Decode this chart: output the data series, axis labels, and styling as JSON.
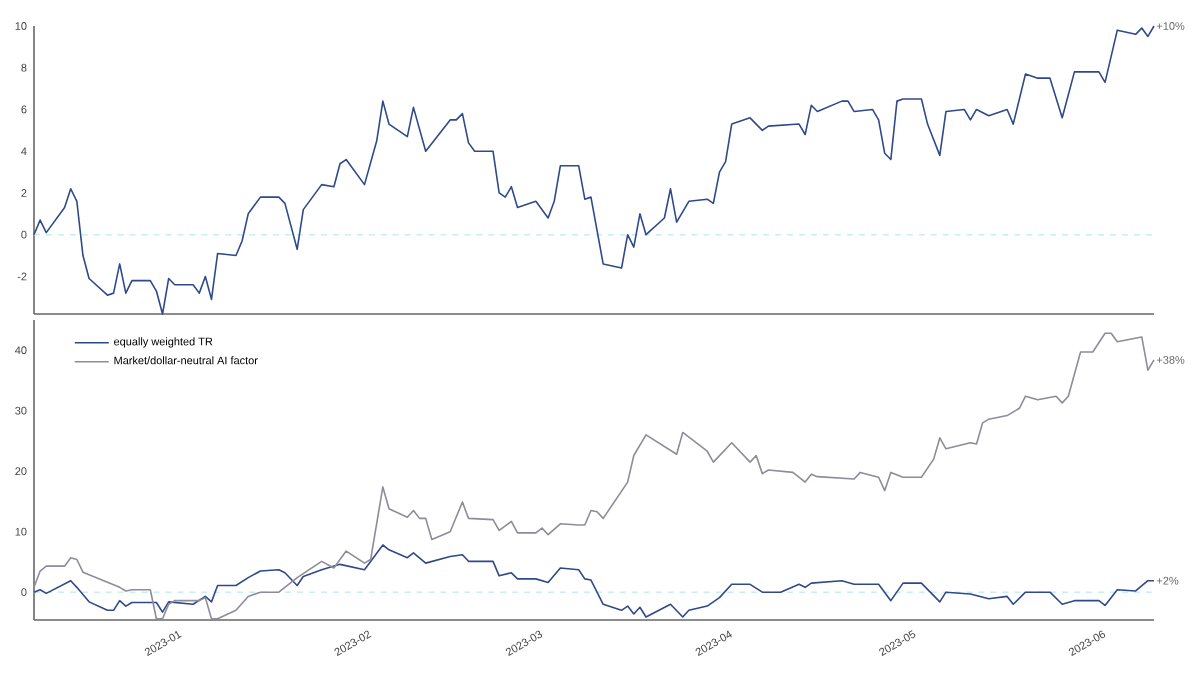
{
  "chart_data": [
    {
      "type": "line",
      "xlim": [
        "2022-12-08",
        "2023-06-09"
      ],
      "ylim": [
        -3.8,
        10
      ],
      "yticks": [
        -2,
        0,
        2,
        4,
        6,
        8,
        10
      ],
      "tick_labels": "y",
      "line_style": "solid",
      "x": [
        "2022-12-08",
        "2022-12-09",
        "2022-12-10",
        "2022-12-13",
        "2022-12-14",
        "2022-12-15",
        "2022-12-16",
        "2022-12-17",
        "2022-12-20",
        "2022-12-21",
        "2022-12-22",
        "2022-12-23",
        "2022-12-24",
        "2022-12-27",
        "2022-12-28",
        "2022-12-29",
        "2022-12-30",
        "2022-12-31",
        "2023-01-03",
        "2023-01-04",
        "2023-01-05",
        "2023-01-06",
        "2023-01-07",
        "2023-01-10",
        "2023-01-11",
        "2023-01-12",
        "2023-01-14",
        "2023-01-17",
        "2023-01-18",
        "2023-01-20",
        "2023-01-21",
        "2023-01-24",
        "2023-01-26",
        "2023-01-27",
        "2023-01-28",
        "2023-01-31",
        "2023-02-02",
        "2023-02-03",
        "2023-02-04",
        "2023-02-07",
        "2023-02-08",
        "2023-02-10",
        "2023-02-14",
        "2023-02-15",
        "2023-02-16",
        "2023-02-17",
        "2023-02-18",
        "2023-02-21",
        "2023-02-22",
        "2023-02-23",
        "2023-02-24",
        "2023-02-25",
        "2023-02-28",
        "2023-03-02",
        "2023-03-03",
        "2023-03-04",
        "2023-03-07",
        "2023-03-08",
        "2023-03-09",
        "2023-03-11",
        "2023-03-14",
        "2023-03-15",
        "2023-03-16",
        "2023-03-17",
        "2023-03-18",
        "2023-03-21",
        "2023-03-22",
        "2023-03-23",
        "2023-03-25",
        "2023-03-28",
        "2023-03-29",
        "2023-03-30",
        "2023-03-31",
        "2023-04-01",
        "2023-04-04",
        "2023-04-06",
        "2023-04-07",
        "2023-04-12",
        "2023-04-13",
        "2023-04-14",
        "2023-04-15",
        "2023-04-19",
        "2023-04-20",
        "2023-04-21",
        "2023-04-24",
        "2023-04-25",
        "2023-04-26",
        "2023-04-27",
        "2023-04-28",
        "2023-04-29",
        "2023-05-02",
        "2023-05-03",
        "2023-05-05",
        "2023-05-06",
        "2023-05-09",
        "2023-05-10",
        "2023-05-11",
        "2023-05-13",
        "2023-05-16",
        "2023-05-17",
        "2023-05-19",
        "2023-05-21",
        "2023-05-23",
        "2023-05-25",
        "2023-05-27",
        "2023-05-31",
        "2023-06-01",
        "2023-06-03",
        "2023-06-06",
        "2023-06-07",
        "2023-06-08",
        "2023-06-09"
      ],
      "series": [
        {
          "color": "#2e4a8a",
          "values": [
            0,
            0.7,
            0.1,
            1.3,
            2.2,
            1.6,
            -1,
            -2.1,
            -2.9,
            -2.8,
            -1.4,
            -2.8,
            -2.2,
            -2.2,
            -2.7,
            -3.8,
            -2.1,
            -2.4,
            -2.4,
            -2.8,
            -2,
            -3.1,
            -0.9,
            -1,
            -0.3,
            1,
            1.8,
            1.8,
            1.5,
            -0.7,
            1.2,
            2.4,
            2.3,
            3.4,
            3.6,
            2.4,
            4.5,
            6.4,
            5.3,
            4.7,
            6.1,
            4,
            5.5,
            5.5,
            5.8,
            4.4,
            4,
            4,
            2,
            1.8,
            2.3,
            1.3,
            1.6,
            0.8,
            1.6,
            3.3,
            3.3,
            1.7,
            1.8,
            -1.4,
            -1.6,
            0,
            -0.6,
            1,
            0,
            0.8,
            2.2,
            0.6,
            1.6,
            1.7,
            1.5,
            3,
            3.5,
            5.3,
            5.6,
            5,
            5.2,
            5.3,
            4.8,
            6.2,
            5.9,
            6.4,
            6.4,
            5.9,
            6,
            5.5,
            3.9,
            3.6,
            6.4,
            6.5,
            6.5,
            5.3,
            3.8,
            5.9,
            6,
            5.5,
            6,
            5.7,
            6,
            5.3,
            7.7,
            7.5,
            7.5,
            5.6,
            7.8,
            7.8,
            7.3,
            9.8,
            9.6,
            9.9,
            9.5,
            10
          ]
        }
      ],
      "ref_lines": [
        {
          "axis": "y",
          "value": 0,
          "color": "#c6eef3",
          "line_style": "dashed"
        }
      ],
      "annotations": [
        {
          "text": "+10%",
          "x": "2023-06-09",
          "y": 10
        }
      ]
    },
    {
      "type": "line",
      "xlim": [
        "2022-12-08",
        "2023-06-09"
      ],
      "ylim": [
        -4.6,
        45
      ],
      "yticks": [
        0,
        10,
        20,
        30,
        40
      ],
      "legend": "top left",
      "line_style": "solid",
      "xticks": [
        {
          "value": "2023-01-01",
          "label": "2023-01"
        },
        {
          "value": "2023-02-01",
          "label": "2023-02"
        },
        {
          "value": "2023-03-01",
          "label": "2023-03"
        },
        {
          "value": "2023-04-01",
          "label": "2023-04"
        },
        {
          "value": "2023-05-01",
          "label": "2023-05"
        },
        {
          "value": "2023-06-01",
          "label": "2023-06"
        }
      ],
      "series": [
        {
          "name": "equally weighted TR",
          "color": "#2e4a8a",
          "x": [
            "2022-12-08",
            "2022-12-09",
            "2022-12-10",
            "2022-12-14",
            "2022-12-15",
            "2022-12-17",
            "2022-12-20",
            "2022-12-21",
            "2022-12-22",
            "2022-12-23",
            "2022-12-24",
            "2022-12-28",
            "2022-12-29",
            "2022-12-30",
            "2023-01-03",
            "2023-01-05",
            "2023-01-06",
            "2023-01-07",
            "2023-01-10",
            "2023-01-12",
            "2023-01-14",
            "2023-01-17",
            "2023-01-18",
            "2023-01-20",
            "2023-01-21",
            "2023-01-24",
            "2023-01-27",
            "2023-01-31",
            "2023-02-03",
            "2023-02-04",
            "2023-02-07",
            "2023-02-08",
            "2023-02-10",
            "2023-02-14",
            "2023-02-16",
            "2023-02-17",
            "2023-02-21",
            "2023-02-22",
            "2023-02-24",
            "2023-02-25",
            "2023-02-28",
            "2023-03-02",
            "2023-03-04",
            "2023-03-07",
            "2023-03-08",
            "2023-03-09",
            "2023-03-11",
            "2023-03-14",
            "2023-03-15",
            "2023-03-16",
            "2023-03-17",
            "2023-03-18",
            "2023-03-22",
            "2023-03-24",
            "2023-03-25",
            "2023-03-28",
            "2023-03-30",
            "2023-04-01",
            "2023-04-04",
            "2023-04-06",
            "2023-04-09",
            "2023-04-12",
            "2023-04-13",
            "2023-04-14",
            "2023-04-19",
            "2023-04-21",
            "2023-04-25",
            "2023-04-27",
            "2023-04-29",
            "2023-05-02",
            "2023-05-05",
            "2023-05-06",
            "2023-05-10",
            "2023-05-13",
            "2023-05-16",
            "2023-05-17",
            "2023-05-19",
            "2023-05-23",
            "2023-05-25",
            "2023-05-27",
            "2023-05-31",
            "2023-06-01",
            "2023-06-03",
            "2023-06-06",
            "2023-06-08",
            "2023-06-09"
          ],
          "values": [
            0,
            0.4,
            -0.2,
            1.9,
            0.8,
            -1.6,
            -3,
            -3,
            -1.4,
            -2.3,
            -1.7,
            -1.7,
            -3.3,
            -1.6,
            -2,
            -0.7,
            -1.6,
            1.1,
            1.1,
            2.4,
            3.5,
            3.7,
            3.2,
            1.1,
            2.6,
            3.7,
            4.6,
            3.7,
            7.8,
            7,
            5.7,
            6.5,
            4.8,
            5.9,
            6.2,
            5.1,
            5.1,
            2.7,
            3.2,
            2.2,
            2.2,
            1.6,
            4,
            3.7,
            2.2,
            2,
            -2,
            -3,
            -2.3,
            -3.6,
            -2.5,
            -4.1,
            -2,
            -4.1,
            -3,
            -2.3,
            -0.9,
            1.3,
            1.3,
            0,
            0,
            1.3,
            0.8,
            1.5,
            1.9,
            1.3,
            1.3,
            -1.4,
            1.5,
            1.5,
            -1.6,
            0,
            -0.3,
            -1.1,
            -0.7,
            -2,
            0,
            0,
            -2,
            -1.4,
            -1.4,
            -2.2,
            0.4,
            0.2,
            1.9,
            1.9
          ]
        },
        {
          "name": "Market/dollar-neutral AI factor",
          "color": "#8c8c9c",
          "x": [
            "2022-12-08",
            "2022-12-09",
            "2022-12-10",
            "2022-12-13",
            "2022-12-14",
            "2022-12-15",
            "2022-12-16",
            "2022-12-22",
            "2022-12-23",
            "2022-12-24",
            "2022-12-27",
            "2022-12-28",
            "2022-12-29",
            "2022-12-30",
            "2022-12-31",
            "2023-01-04",
            "2023-01-05",
            "2023-01-06",
            "2023-01-07",
            "2023-01-10",
            "2023-01-12",
            "2023-01-14",
            "2023-01-17",
            "2023-01-20",
            "2023-01-24",
            "2023-01-26",
            "2023-01-28",
            "2023-01-31",
            "2023-02-01",
            "2023-02-03",
            "2023-02-04",
            "2023-02-07",
            "2023-02-08",
            "2023-02-09",
            "2023-02-10",
            "2023-02-11",
            "2023-02-14",
            "2023-02-16",
            "2023-02-17",
            "2023-02-21",
            "2023-02-22",
            "2023-02-24",
            "2023-02-25",
            "2023-02-28",
            "2023-03-01",
            "2023-03-02",
            "2023-03-04",
            "2023-03-07",
            "2023-03-08",
            "2023-03-09",
            "2023-03-10",
            "2023-03-11",
            "2023-03-15",
            "2023-03-16",
            "2023-03-18",
            "2023-03-23",
            "2023-03-24",
            "2023-03-28",
            "2023-03-29",
            "2023-04-01",
            "2023-04-04",
            "2023-04-05",
            "2023-04-06",
            "2023-04-07",
            "2023-04-11",
            "2023-04-13",
            "2023-04-14",
            "2023-04-15",
            "2023-04-21",
            "2023-04-22",
            "2023-04-25",
            "2023-04-26",
            "2023-04-27",
            "2023-04-29",
            "2023-05-02",
            "2023-05-04",
            "2023-05-05",
            "2023-05-06",
            "2023-05-10",
            "2023-05-11",
            "2023-05-12",
            "2023-05-13",
            "2023-05-16",
            "2023-05-18",
            "2023-05-19",
            "2023-05-21",
            "2023-05-24",
            "2023-05-25",
            "2023-05-26",
            "2023-05-28",
            "2023-05-30",
            "2023-06-01",
            "2023-06-02",
            "2023-06-03",
            "2023-06-07",
            "2023-06-08",
            "2023-06-09"
          ],
          "values": [
            0.8,
            3.5,
            4.3,
            4.3,
            5.7,
            5.4,
            3.3,
            0.8,
            0.2,
            0.4,
            0.4,
            -4.4,
            -4.4,
            -2,
            -1.4,
            -1.4,
            -0.9,
            -4.4,
            -4.4,
            -3,
            -0.7,
            0,
            0,
            2.4,
            5.1,
            4,
            6.8,
            4.8,
            5.4,
            17.4,
            13.8,
            12.4,
            13.5,
            12.2,
            12.2,
            8.7,
            10,
            14.9,
            12.2,
            12,
            10.2,
            11.7,
            9.8,
            9.8,
            10.6,
            9.5,
            11.3,
            11.1,
            11.1,
            13.5,
            13.3,
            12.2,
            18.2,
            22.6,
            26,
            22.8,
            26.4,
            23.3,
            21.5,
            24.7,
            21.5,
            22.6,
            19.6,
            20.2,
            19.8,
            18.2,
            19.5,
            19.1,
            18.7,
            19.8,
            19,
            16.8,
            19.8,
            19,
            19,
            22,
            25.5,
            23.7,
            24.7,
            24.5,
            28,
            28.6,
            29.2,
            30.4,
            32.4,
            31.8,
            32.4,
            31.3,
            32.4,
            39.7,
            39.7,
            42.8,
            42.8,
            41.4,
            42.2,
            36.7,
            38.4
          ]
        }
      ],
      "ref_lines": [
        {
          "axis": "y",
          "value": 0,
          "color": "#c6eef3",
          "line_style": "dashed"
        }
      ],
      "annotations": [
        {
          "text": "+38%",
          "x": "2023-06-09",
          "y": 38.4
        },
        {
          "text": "+2%",
          "x": "2023-06-09",
          "y": 1.9
        }
      ]
    }
  ]
}
